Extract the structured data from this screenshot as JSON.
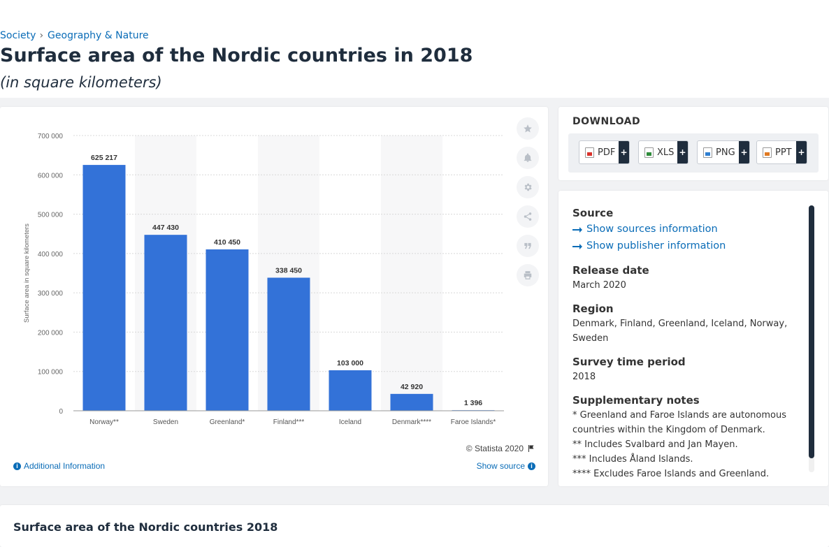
{
  "breadcrumb": {
    "items": [
      "Society",
      "Geography & Nature"
    ]
  },
  "page": {
    "title": "Surface area of the Nordic countries in 2018",
    "subtitle": "(in square kilometers)"
  },
  "chart_data": {
    "type": "bar",
    "categories": [
      "Norway**",
      "Sweden",
      "Greenland*",
      "Finland***",
      "Iceland",
      "Denmark****",
      "Faroe Islands*"
    ],
    "values": [
      625217,
      447430,
      410450,
      338450,
      103000,
      42920,
      1396
    ],
    "data_labels": [
      "625 217",
      "447 430",
      "410 450",
      "338 450",
      "103 000",
      "42 920",
      "1 396"
    ],
    "ylabel": "Surface area in square kilometers",
    "ylim": [
      0,
      700000
    ],
    "yticks": [
      0,
      100000,
      200000,
      300000,
      400000,
      500000,
      600000,
      700000
    ],
    "ytick_labels": [
      "0",
      "100 000",
      "200 000",
      "300 000",
      "400 000",
      "500 000",
      "600 000",
      "700 000"
    ],
    "bar_color": "#3372d8",
    "grid": true
  },
  "chart_footer": {
    "credit": "© Statista 2020",
    "additional_info": "Additional Information",
    "show_source": "Show source"
  },
  "tools": [
    "star-icon",
    "bell-icon",
    "gear-icon",
    "share-icon",
    "quote-icon",
    "print-icon"
  ],
  "download": {
    "heading": "DOWNLOAD",
    "buttons": [
      {
        "label": "PDF",
        "icon": "pdf-file-icon"
      },
      {
        "label": "XLS",
        "icon": "xls-file-icon"
      },
      {
        "label": "PNG",
        "icon": "png-file-icon"
      },
      {
        "label": "PPT",
        "icon": "ppt-file-icon"
      }
    ],
    "plus": "+"
  },
  "details": {
    "source_heading": "Source",
    "sources_link": "Show sources information",
    "publisher_link": "Show publisher information",
    "release_heading": "Release date",
    "release_value": "March 2020",
    "region_heading": "Region",
    "region_value": "Denmark, Finland, Greenland, Iceland, Norway, Sweden",
    "survey_heading": "Survey time period",
    "survey_value": "2018",
    "notes_heading": "Supplementary notes",
    "notes": [
      "* Greenland and Faroe Islands are autonomous countries within the Kingdom of Denmark.",
      "** Includes Svalbard and Jan Mayen.",
      "*** Includes Åland Islands.",
      "**** Excludes Faroe Islands and Greenland."
    ]
  },
  "bottom": {
    "title": "Surface area of the Nordic countries 2018"
  }
}
